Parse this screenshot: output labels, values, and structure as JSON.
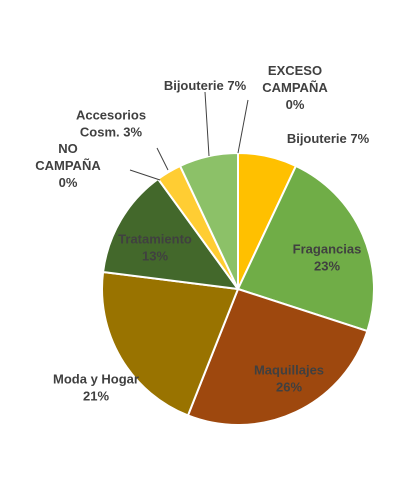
{
  "chart_data": {
    "type": "pie",
    "legend": "none",
    "slices": [
      {
        "label": "EXCESO CAMPAÑA",
        "lines": [
          "EXCESO",
          "CAMPAÑA"
        ],
        "pct_text": "0%",
        "value": 0,
        "color": "#ffc000",
        "label_color": "#404040"
      },
      {
        "label": "Bijouterie 7%",
        "lines": [
          "Bijouterie 7%"
        ],
        "pct_text": "",
        "value": 7,
        "color": "#ffc000",
        "label_color": "#404040"
      },
      {
        "label": "Fragancias",
        "lines": [
          "Fragancias"
        ],
        "pct_text": "23%",
        "value": 23,
        "color": "#70ad47",
        "label_color": "#404040"
      },
      {
        "label": "Maquillajes",
        "lines": [
          "Maquillajes"
        ],
        "pct_text": "26%",
        "value": 26,
        "color": "#9e480e",
        "label_color": "#404040"
      },
      {
        "label": "Moda y Hogar",
        "lines": [
          "Moda y Hogar"
        ],
        "pct_text": "21%",
        "value": 21,
        "color": "#997300",
        "label_color": "#404040"
      },
      {
        "label": "Tratamiento",
        "lines": [
          "Tratamiento"
        ],
        "pct_text": "13%",
        "value": 13,
        "color": "#43682b",
        "label_color": "#404040"
      },
      {
        "label": "NO CAMPAÑA",
        "lines": [
          "NO",
          "CAMPAÑA"
        ],
        "pct_text": "0%",
        "value": 0,
        "color": "#ffc000",
        "label_color": "#404040"
      },
      {
        "label": "Accesorios Cosm. 3%",
        "lines": [
          "Accesorios",
          "Cosm. 3%"
        ],
        "pct_text": "",
        "value": 3,
        "color": "#ffcd33",
        "label_color": "#404040"
      },
      {
        "label": "Bijouterie 7%",
        "lines": [
          "Bijouterie 7%"
        ],
        "pct_text": "",
        "value": 7,
        "color": "#8cc168",
        "label_color": "#404040"
      }
    ]
  }
}
